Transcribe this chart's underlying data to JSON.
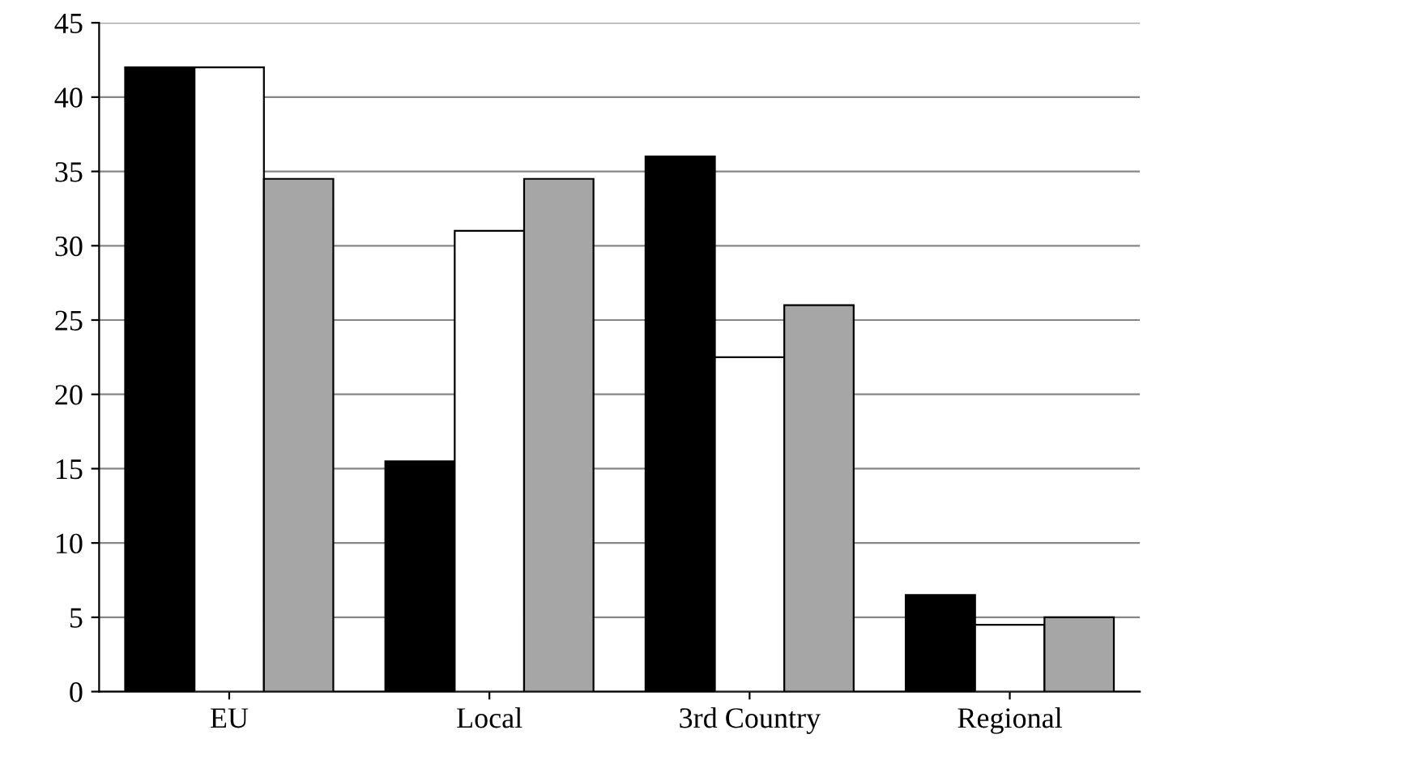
{
  "chart_data": {
    "type": "bar",
    "categories": [
      "EU",
      "Local",
      "3rd Country",
      "Regional"
    ],
    "series": [
      {
        "color": "#000000",
        "values": [
          42,
          15.5,
          36,
          6.5
        ]
      },
      {
        "color": "#ffffff",
        "values": [
          42,
          31,
          22.5,
          4.5
        ]
      },
      {
        "color": "#a6a6a6",
        "values": [
          34.5,
          34.5,
          26,
          5
        ]
      }
    ],
    "ylim": [
      0,
      45
    ],
    "yticks": [
      0,
      5,
      10,
      15,
      20,
      25,
      30,
      35,
      40,
      45
    ],
    "grid": "y"
  }
}
